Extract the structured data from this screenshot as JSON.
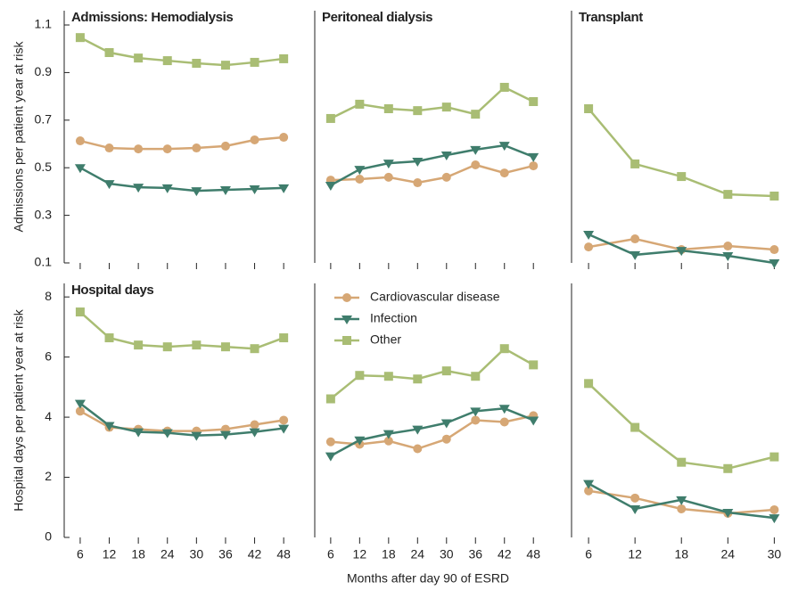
{
  "x_label": "Months after day 90 of ESRD",
  "chart_data": [
    {
      "type": "line",
      "title": "Admissions: Hemodialysis",
      "y_label": "Admissions per patient year at risk",
      "x": [
        6,
        12,
        18,
        24,
        30,
        36,
        42,
        48
      ],
      "xlim": [
        2.7,
        51.1
      ],
      "xticks": [
        6,
        12,
        18,
        24,
        30,
        36,
        42,
        48
      ],
      "xtick_labels": false,
      "ylim": [
        0.1,
        1.16
      ],
      "yticks": [
        0.1,
        0.3,
        0.5,
        0.7,
        0.9,
        1.1
      ],
      "series": [
        {
          "name": "Cardiovascular disease",
          "color": "#d6a775",
          "marker": "circle",
          "values": [
            0.613,
            0.583,
            0.579,
            0.579,
            0.583,
            0.591,
            0.617,
            0.628
          ]
        },
        {
          "name": "Infection",
          "color": "#3f7d6c",
          "marker": "triangle",
          "values": [
            0.5,
            0.433,
            0.418,
            0.415,
            0.403,
            0.407,
            0.411,
            0.415
          ]
        },
        {
          "name": "Other",
          "color": "#a9bd74",
          "marker": "square",
          "values": [
            1.047,
            0.984,
            0.961,
            0.95,
            0.939,
            0.931,
            0.943,
            0.958
          ]
        }
      ]
    },
    {
      "type": "line",
      "title": "Peritoneal dialysis",
      "x": [
        6,
        12,
        18,
        24,
        30,
        36,
        42,
        48
      ],
      "xlim": [
        2.7,
        51.1
      ],
      "xticks": [
        6,
        12,
        18,
        24,
        30,
        36,
        42,
        48
      ],
      "xtick_labels": false,
      "ylim": [
        0.1,
        1.16
      ],
      "series": [
        {
          "name": "Cardiovascular disease",
          "color": "#d6a775",
          "marker": "circle",
          "values": [
            0.448,
            0.452,
            0.46,
            0.437,
            0.46,
            0.512,
            0.478,
            0.508
          ]
        },
        {
          "name": "Infection",
          "color": "#3f7d6c",
          "marker": "triangle",
          "values": [
            0.426,
            0.493,
            0.519,
            0.527,
            0.553,
            0.576,
            0.594,
            0.546
          ]
        },
        {
          "name": "Other",
          "color": "#a9bd74",
          "marker": "square",
          "values": [
            0.707,
            0.767,
            0.748,
            0.74,
            0.755,
            0.725,
            0.838,
            0.778
          ]
        }
      ]
    },
    {
      "type": "line",
      "title": "Transplant",
      "x": [
        6,
        12,
        18,
        24,
        30
      ],
      "xlim": [
        3.8,
        31.8
      ],
      "xticks": [
        6,
        12,
        18,
        24,
        30
      ],
      "xtick_labels": false,
      "ylim": [
        0.1,
        1.16
      ],
      "series": [
        {
          "name": "Cardiovascular disease",
          "color": "#d6a775",
          "marker": "circle",
          "values": [
            0.167,
            0.201,
            0.156,
            0.171,
            0.156
          ]
        },
        {
          "name": "Infection",
          "color": "#3f7d6c",
          "marker": "triangle",
          "values": [
            0.22,
            0.134,
            0.152,
            0.13,
            0.1
          ]
        },
        {
          "name": "Other",
          "color": "#a9bd74",
          "marker": "square",
          "values": [
            0.748,
            0.516,
            0.463,
            0.388,
            0.381
          ]
        }
      ]
    },
    {
      "type": "line",
      "title": "Hospital days",
      "y_label": "Hospital days per patient year at risk",
      "x": [
        6,
        12,
        18,
        24,
        30,
        36,
        42,
        48
      ],
      "xlim": [
        2.7,
        51.1
      ],
      "xticks": [
        6,
        12,
        18,
        24,
        30,
        36,
        42,
        48
      ],
      "xtick_labels": true,
      "ylim": [
        0,
        8.45
      ],
      "yticks": [
        0,
        2,
        4,
        6,
        8
      ],
      "series": [
        {
          "name": "Cardiovascular disease",
          "color": "#d6a775",
          "marker": "circle",
          "values": [
            4.2,
            3.66,
            3.6,
            3.54,
            3.54,
            3.6,
            3.75,
            3.9
          ]
        },
        {
          "name": "Infection",
          "color": "#3f7d6c",
          "marker": "triangle",
          "values": [
            4.46,
            3.72,
            3.51,
            3.48,
            3.39,
            3.42,
            3.51,
            3.63
          ]
        },
        {
          "name": "Other",
          "color": "#a9bd74",
          "marker": "square",
          "values": [
            7.5,
            6.64,
            6.4,
            6.34,
            6.4,
            6.34,
            6.28,
            6.64
          ]
        }
      ]
    },
    {
      "type": "line",
      "legend": "upper-left",
      "x": [
        6,
        12,
        18,
        24,
        30,
        36,
        42,
        48
      ],
      "xlim": [
        2.7,
        51.1
      ],
      "xticks": [
        6,
        12,
        18,
        24,
        30,
        36,
        42,
        48
      ],
      "xtick_labels": true,
      "ylim": [
        0,
        8.45
      ],
      "series": [
        {
          "name": "Cardiovascular disease",
          "color": "#d6a775",
          "marker": "circle",
          "values": [
            3.18,
            3.1,
            3.21,
            2.95,
            3.27,
            3.9,
            3.84,
            4.05
          ]
        },
        {
          "name": "Infection",
          "color": "#3f7d6c",
          "marker": "triangle",
          "values": [
            2.71,
            3.24,
            3.45,
            3.6,
            3.81,
            4.2,
            4.29,
            3.9
          ]
        },
        {
          "name": "Other",
          "color": "#a9bd74",
          "marker": "square",
          "values": [
            4.61,
            5.39,
            5.36,
            5.27,
            5.54,
            5.36,
            6.28,
            5.74
          ]
        }
      ]
    },
    {
      "type": "line",
      "x": [
        6,
        12,
        18,
        24,
        30
      ],
      "xlim": [
        3.8,
        31.8
      ],
      "xticks": [
        6,
        12,
        18,
        24,
        30
      ],
      "xtick_labels": true,
      "ylim": [
        0,
        8.45
      ],
      "series": [
        {
          "name": "Cardiovascular disease",
          "color": "#d6a775",
          "marker": "circle",
          "values": [
            1.55,
            1.31,
            0.95,
            0.8,
            0.92
          ]
        },
        {
          "name": "Infection",
          "color": "#3f7d6c",
          "marker": "triangle",
          "values": [
            1.79,
            0.95,
            1.25,
            0.83,
            0.65
          ]
        },
        {
          "name": "Other",
          "color": "#a9bd74",
          "marker": "square",
          "values": [
            5.12,
            3.66,
            2.5,
            2.29,
            2.68
          ]
        }
      ]
    }
  ]
}
